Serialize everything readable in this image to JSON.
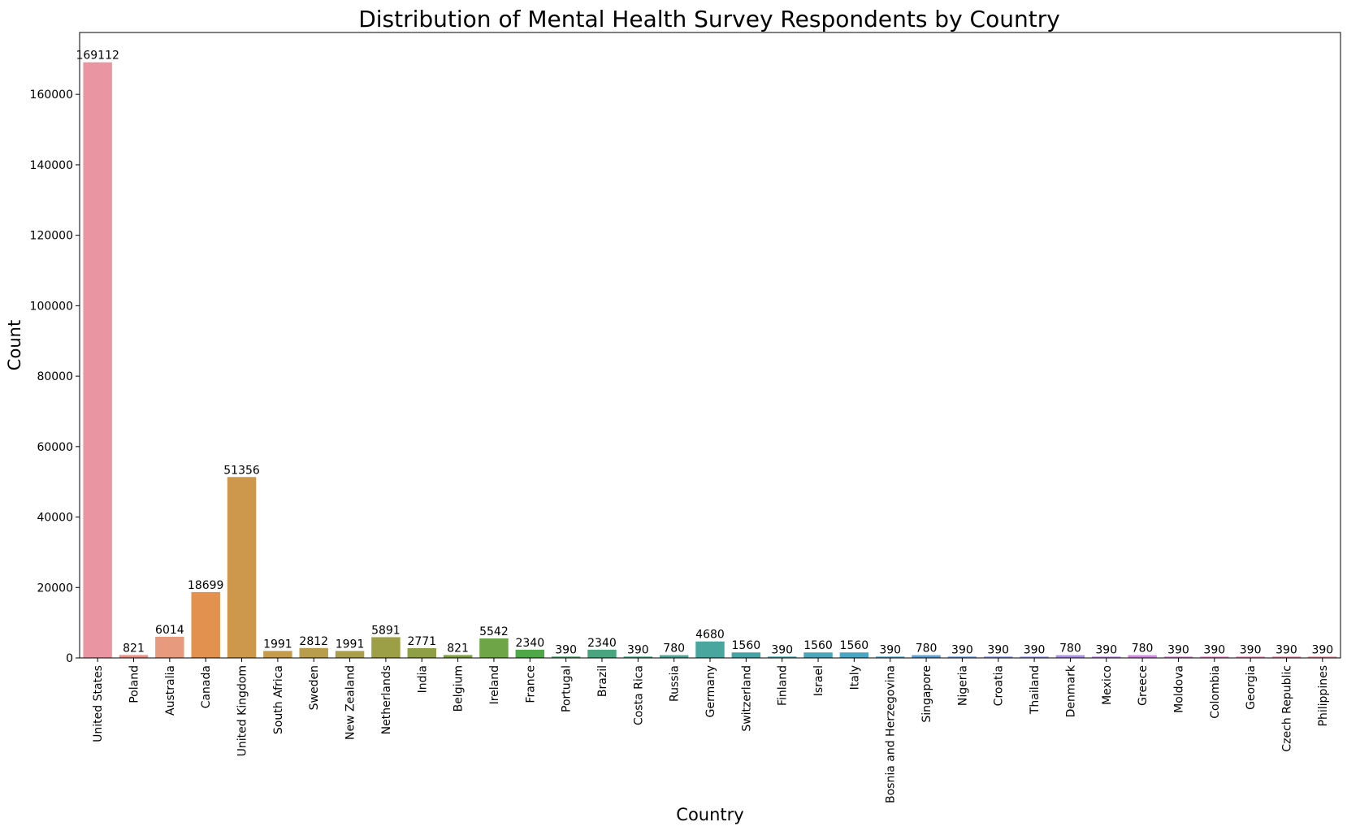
{
  "chart_data": {
    "type": "bar",
    "title": "Distribution of Mental Health Survey Respondents by Country",
    "xlabel": "Country",
    "ylabel": "Count",
    "ylim": [
      0,
      177568
    ],
    "yticks": [
      0,
      20000,
      40000,
      60000,
      80000,
      100000,
      120000,
      140000,
      160000
    ],
    "grid": false,
    "legend": "none",
    "categories": [
      "United States",
      "Poland",
      "Australia",
      "Canada",
      "United Kingdom",
      "South Africa",
      "Sweden",
      "New Zealand",
      "Netherlands",
      "India",
      "Belgium",
      "Ireland",
      "France",
      "Portugal",
      "Brazil",
      "Costa Rica",
      "Russia",
      "Germany",
      "Switzerland",
      "Finland",
      "Israel",
      "Italy",
      "Bosnia and Herzegovina",
      "Singapore",
      "Nigeria",
      "Croatia",
      "Thailand",
      "Denmark",
      "Mexico",
      "Greece",
      "Moldova",
      "Colombia",
      "Georgia",
      "Czech Republic",
      "Philippines"
    ],
    "values": [
      169112,
      821,
      6014,
      18699,
      51356,
      1991,
      2812,
      1991,
      5891,
      2771,
      821,
      5542,
      2340,
      390,
      2340,
      390,
      780,
      4680,
      1560,
      390,
      1560,
      1560,
      390,
      780,
      390,
      390,
      390,
      780,
      390,
      780,
      390,
      390,
      390,
      390,
      390
    ],
    "colors": [
      "#ea96a2",
      "#ea8f86",
      "#e89a7e",
      "#e2914e",
      "#cd974c",
      "#c49c4c",
      "#b89e4c",
      "#aa9e4c",
      "#9d9f46",
      "#8f9f46",
      "#7f9f42",
      "#6ea546",
      "#4fa847",
      "#49a46e",
      "#48a57e",
      "#48a689",
      "#48a692",
      "#48a69e",
      "#47a4a4",
      "#48a5ab",
      "#4aa6b8",
      "#4aa6c2",
      "#52a3cd",
      "#5a9fd5",
      "#6a9be1",
      "#8897e8",
      "#9c95eb",
      "#ab8fe8",
      "#bf8ae6",
      "#d486e3",
      "#db86d3",
      "#e687c4",
      "#e78ab6",
      "#e88aa9",
      "#e98f9e"
    ]
  }
}
